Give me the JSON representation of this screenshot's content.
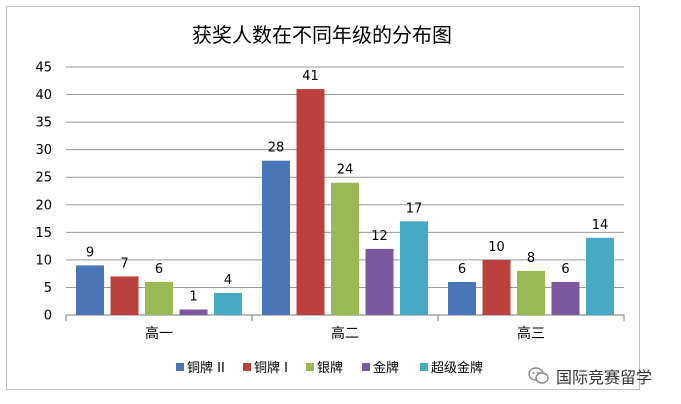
{
  "chart_data": {
    "type": "bar",
    "title": "获奖人数在不同年级的分布图",
    "categories": [
      "高一",
      "高二",
      "高三"
    ],
    "series": [
      {
        "name": "铜牌 II",
        "color": "#4a76b8",
        "values": [
          9,
          28,
          6
        ]
      },
      {
        "name": "铜牌 I",
        "color": "#bc413e",
        "values": [
          7,
          41,
          10
        ]
      },
      {
        "name": "银牌",
        "color": "#98b954",
        "values": [
          6,
          24,
          8
        ]
      },
      {
        "name": "金牌",
        "color": "#7b59a0",
        "values": [
          1,
          12,
          6
        ]
      },
      {
        "name": "超级金牌",
        "color": "#46aac5",
        "values": [
          4,
          17,
          14
        ]
      }
    ],
    "ylim": [
      0,
      45
    ],
    "yticks": [
      0,
      5,
      10,
      15,
      20,
      25,
      30,
      35,
      40,
      45
    ],
    "grid": true,
    "legend": "bottom",
    "data_labels": true
  },
  "watermark": {
    "text": "国际竞赛留学",
    "icon": "wechat-icon"
  }
}
